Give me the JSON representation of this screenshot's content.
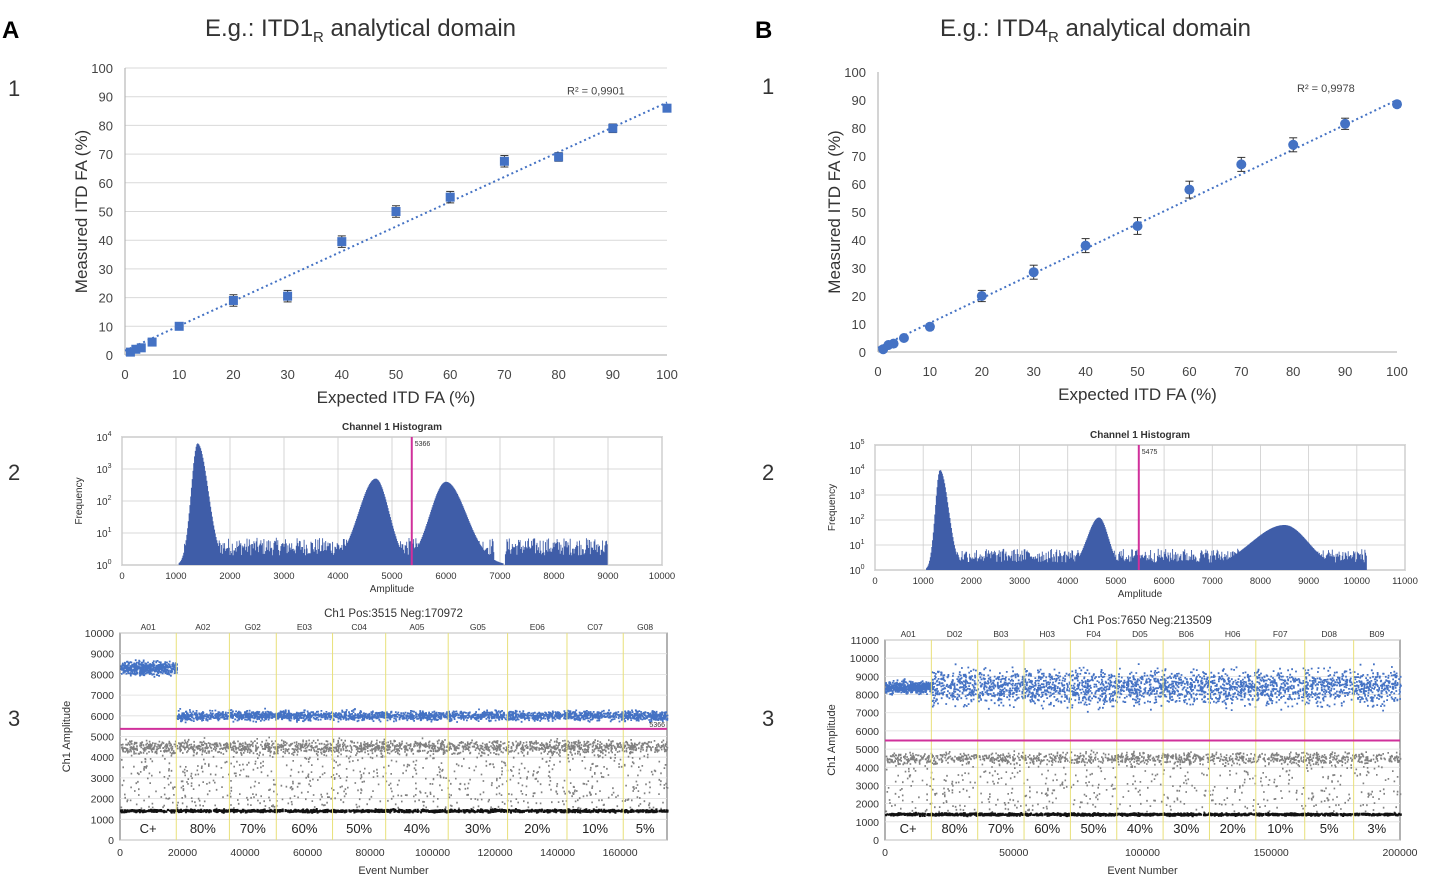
{
  "colors": {
    "point": "#4472c4",
    "histogram": "#3f5da8",
    "threshold": "#d0309b",
    "negative": "#808080",
    "baseline": "#111111",
    "divider": "#e8e07a",
    "grid": "#d9d9d9"
  },
  "panels": [
    {
      "letter": "A",
      "title_prefix": "E.g.: ITD1",
      "title_sub": "R",
      "title_suffix": " analytical domain",
      "row_labels": [
        "1",
        "2",
        "3"
      ],
      "scatter": {
        "type": "scatter",
        "xlabel": "Expected ITD FA (%)",
        "ylabel": "Measured ITD FA (%)",
        "xlim": [
          0,
          100
        ],
        "ylim": [
          0,
          100
        ],
        "xticks": [
          0,
          10,
          20,
          30,
          40,
          50,
          60,
          70,
          80,
          90,
          100
        ],
        "yticks": [
          0,
          10,
          20,
          30,
          40,
          50,
          60,
          70,
          80,
          90,
          100
        ],
        "r2": "R² = 0,9901",
        "x": [
          1,
          2,
          3,
          5,
          10,
          20,
          30,
          40,
          50,
          60,
          70,
          80,
          90,
          100
        ],
        "y": [
          1,
          2,
          2.5,
          4.5,
          10,
          19,
          20.5,
          39.5,
          50,
          55,
          67.5,
          69,
          79,
          86
        ],
        "err": [
          0.5,
          0.5,
          0.5,
          0.5,
          1,
          2,
          2,
          2,
          2,
          2,
          2,
          1.5,
          1.5,
          1
        ],
        "trend": [
          [
            0,
            1.5
          ],
          [
            100,
            88
          ]
        ],
        "marker": "square"
      },
      "histogram": {
        "type": "area",
        "title": "Channel 1 Histogram",
        "xlabel": "Amplitude",
        "ylabel": "Frequency",
        "xlim": [
          0,
          10000
        ],
        "xticks": [
          0,
          1000,
          2000,
          3000,
          4000,
          5000,
          6000,
          7000,
          8000,
          9000,
          10000
        ],
        "ylog_max_exp": 4,
        "threshold": 5366,
        "threshold_label": "5366",
        "noise_ranges": [
          [
            1150,
            6900
          ],
          [
            7100,
            9000
          ]
        ],
        "peaks": [
          {
            "center": 1400,
            "height": 3.8,
            "sd_left": 120,
            "sd_right": 200
          },
          {
            "center": 4700,
            "height": 2.7,
            "sd_left": 320,
            "sd_right": 250
          },
          {
            "center": 6000,
            "height": 2.6,
            "sd_left": 300,
            "sd_right": 380
          }
        ]
      },
      "dotplot": {
        "type": "scatter",
        "title": "Ch1 Pos:3515 Neg:170972",
        "xlabel": "Event Number",
        "ylabel": "Ch1 Amplitude",
        "xlim": [
          0,
          175000
        ],
        "ylim": [
          0,
          10000
        ],
        "xticks": [
          0,
          20000,
          40000,
          60000,
          80000,
          100000,
          120000,
          140000,
          160000
        ],
        "yticks": [
          0,
          1000,
          2000,
          3000,
          4000,
          5000,
          6000,
          7000,
          8000,
          9000,
          10000
        ],
        "threshold": 5366,
        "threshold_label": "5366",
        "wells": [
          "A01",
          "A02",
          "G02",
          "E03",
          "C04",
          "A05",
          "G05",
          "E06",
          "C07",
          "G08"
        ],
        "boundaries": [
          0,
          18000,
          35000,
          50000,
          68000,
          85000,
          105000,
          124000,
          143000,
          161000,
          175000
        ],
        "percentages": [
          "C+",
          "80%",
          "70%",
          "60%",
          "50%",
          "40%",
          "30%",
          "20%",
          "10%",
          "5%"
        ],
        "pos_first_level": 8300,
        "pos_level": 6000
      }
    },
    {
      "letter": "B",
      "title_prefix": "E.g.: ITD4",
      "title_sub": "R",
      "title_suffix": " analytical domain",
      "row_labels": [
        "1",
        "2",
        "3"
      ],
      "scatter": {
        "type": "scatter",
        "xlabel": "Expected ITD FA (%)",
        "ylabel": "Measured ITD FA (%)",
        "xlim": [
          0,
          100
        ],
        "ylim": [
          0,
          100
        ],
        "xticks": [
          0,
          10,
          20,
          30,
          40,
          50,
          60,
          70,
          80,
          90,
          100
        ],
        "yticks": [
          0,
          10,
          20,
          30,
          40,
          50,
          60,
          70,
          80,
          90,
          100
        ],
        "r2": "R² = 0,9978",
        "x": [
          1,
          2,
          3,
          5,
          10,
          20,
          30,
          40,
          50,
          60,
          70,
          80,
          90,
          100
        ],
        "y": [
          1,
          2.5,
          3,
          5,
          9,
          20,
          28.5,
          38,
          45,
          58,
          67,
          74,
          81.5,
          88.5
        ],
        "err": [
          0.5,
          0.5,
          0.5,
          0.5,
          1,
          2,
          2.5,
          2.5,
          3,
          3,
          2.5,
          2.5,
          2,
          1
        ],
        "trend": [
          [
            0,
            1.5
          ],
          [
            100,
            90
          ]
        ],
        "marker": "circle"
      },
      "histogram": {
        "type": "area",
        "title": "Channel 1 Histogram",
        "xlabel": "Amplitude",
        "ylabel": "Frequency",
        "xlim": [
          0,
          11000
        ],
        "xticks": [
          0,
          1000,
          2000,
          3000,
          4000,
          5000,
          6000,
          7000,
          8000,
          9000,
          10000,
          11000
        ],
        "ylog_max_exp": 5,
        "threshold": 5475,
        "threshold_label": "5475",
        "noise_ranges": [
          [
            1150,
            9500
          ],
          [
            9500,
            10200
          ]
        ],
        "peaks": [
          {
            "center": 1350,
            "height": 4.0,
            "sd_left": 100,
            "sd_right": 180
          },
          {
            "center": 4650,
            "height": 2.1,
            "sd_left": 250,
            "sd_right": 200
          },
          {
            "center": 8500,
            "height": 1.8,
            "sd_left": 700,
            "sd_right": 500
          }
        ]
      },
      "dotplot": {
        "type": "scatter",
        "title": "Ch1 Pos:7650 Neg:213509",
        "xlabel": "Event Number",
        "ylabel": "Ch1 Amplitude",
        "xlim": [
          0,
          200000
        ],
        "ylim": [
          0,
          11000
        ],
        "xticks": [
          0,
          50000,
          100000,
          150000,
          200000
        ],
        "yticks": [
          0,
          1000,
          2000,
          3000,
          4000,
          5000,
          6000,
          7000,
          8000,
          9000,
          10000,
          11000
        ],
        "threshold": 5475,
        "threshold_label": "",
        "wells": [
          "A01",
          "D02",
          "B03",
          "H03",
          "F04",
          "D05",
          "B06",
          "H06",
          "F07",
          "D08",
          "B09"
        ],
        "boundaries": [
          0,
          18000,
          36000,
          54000,
          72000,
          90000,
          108000,
          126000,
          144000,
          163000,
          182000,
          200000
        ],
        "percentages": [
          "C+",
          "80%",
          "70%",
          "60%",
          "50%",
          "40%",
          "30%",
          "20%",
          "10%",
          "5%",
          "3%"
        ],
        "pos_first_level": 8400,
        "pos_level": 8400
      }
    }
  ]
}
